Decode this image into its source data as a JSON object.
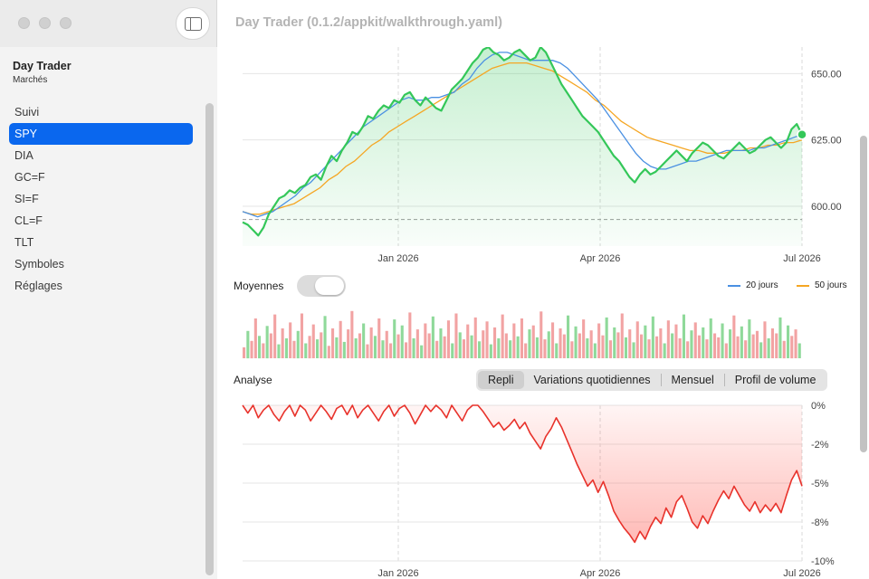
{
  "window": {
    "title": "Day Trader (0.1.2/appkit/walkthrough.yaml)"
  },
  "sidebar": {
    "app_title": "Day Trader",
    "app_subtitle": "Marchés",
    "items": [
      {
        "label": "Suivi",
        "active": false
      },
      {
        "label": "SPY",
        "active": true
      },
      {
        "label": "DIA",
        "active": false
      },
      {
        "label": "GC=F",
        "active": false
      },
      {
        "label": "SI=F",
        "active": false
      },
      {
        "label": "CL=F",
        "active": false
      },
      {
        "label": "TLT",
        "active": false
      },
      {
        "label": "Symboles",
        "active": false
      },
      {
        "label": "Réglages",
        "active": false
      }
    ]
  },
  "controls": {
    "moyennes_label": "Moyennes",
    "moyennes_on": false,
    "legend": [
      {
        "label": "20 jours",
        "color": "#4a90e2"
      },
      {
        "label": "50 jours",
        "color": "#f5a623"
      }
    ],
    "analyse_label": "Analyse",
    "segments": [
      {
        "label": "Repli",
        "selected": true
      },
      {
        "label": "Variations quotidiennes",
        "selected": false
      },
      {
        "label": "Mensuel",
        "selected": false
      },
      {
        "label": "Profil de volume",
        "selected": false
      }
    ]
  },
  "colors": {
    "accent": "#0a67ee",
    "price": "#34c759",
    "ma20": "#4a90e2",
    "ma50": "#f5a623",
    "drawdown": "#e8322b",
    "volume_up": "#8fd99a",
    "volume_down": "#f2a3a3"
  },
  "chart_data": [
    {
      "type": "line",
      "title": "",
      "x_ticks": [
        "Jan 2026",
        "Apr 2026",
        "Jul 2026"
      ],
      "y_ticks": [
        "600.00",
        "625.00",
        "650.00"
      ],
      "ylim": [
        585,
        660
      ],
      "reference_line": 595,
      "series": [
        {
          "name": "",
          "color": "#34c759",
          "values": [
            594,
            593,
            591,
            589,
            592,
            597,
            600,
            603,
            604,
            606,
            605,
            607,
            608,
            611,
            612,
            610,
            615,
            619,
            617,
            621,
            624,
            628,
            627,
            630,
            634,
            633,
            636,
            638,
            637,
            640,
            639,
            642,
            643,
            640,
            638,
            641,
            639,
            637,
            636,
            640,
            644,
            646,
            648,
            651,
            654,
            656,
            659,
            660,
            658,
            657,
            655,
            656,
            658,
            659,
            657,
            655,
            656,
            660,
            658,
            654,
            650,
            646,
            643,
            640,
            637,
            634,
            632,
            630,
            628,
            625,
            622,
            619,
            617,
            614,
            611,
            609,
            612,
            614,
            612,
            613,
            615,
            617,
            619,
            621,
            619,
            617,
            620,
            622,
            624,
            623,
            621,
            619,
            618,
            620,
            622,
            624,
            622,
            620,
            621,
            623,
            625,
            626,
            624,
            622,
            624,
            629,
            631,
            627
          ]
        },
        {
          "name": "20 jours",
          "color": "#4a90e2",
          "values": [
            598,
            597,
            596,
            597,
            598,
            600,
            602,
            604,
            607,
            609,
            612,
            615,
            618,
            621,
            624,
            627,
            630,
            632,
            634,
            636,
            638,
            640,
            641,
            640,
            640,
            641,
            641,
            642,
            643,
            646,
            648,
            652,
            655,
            657,
            658,
            658,
            657,
            656,
            655,
            655,
            655,
            655,
            654,
            652,
            649,
            646,
            643,
            640,
            636,
            632,
            628,
            624,
            620,
            617,
            615,
            614,
            614,
            615,
            616,
            617,
            617,
            618,
            619,
            620,
            621,
            621,
            621,
            621,
            622,
            622,
            623,
            624,
            625,
            626,
            627
          ]
        },
        {
          "name": "50 jours",
          "color": "#f5a623",
          "values": [
            598,
            597,
            597,
            598,
            599,
            600,
            601,
            603,
            605,
            607,
            610,
            612,
            615,
            617,
            620,
            623,
            625,
            628,
            630,
            632,
            634,
            636,
            638,
            640,
            642,
            644,
            646,
            648,
            650,
            652,
            653,
            654,
            654,
            654,
            653,
            652,
            651,
            649,
            647,
            645,
            643,
            640,
            638,
            635,
            632,
            630,
            628,
            626,
            625,
            624,
            623,
            622,
            621,
            621,
            620,
            620,
            620,
            621,
            621,
            622,
            622,
            623,
            623,
            624,
            624,
            625
          ]
        }
      ]
    },
    {
      "type": "bar",
      "title": "",
      "values": [
        0.22,
        0.55,
        0.35,
        0.8,
        0.45,
        0.3,
        0.65,
        0.5,
        0.88,
        0.28,
        0.6,
        0.4,
        0.72,
        0.35,
        0.55,
        0.9,
        0.3,
        0.45,
        0.68,
        0.38,
        0.52,
        0.85,
        0.25,
        0.6,
        0.42,
        0.75,
        0.33,
        0.58,
        0.95,
        0.4,
        0.5,
        0.7,
        0.28,
        0.62,
        0.45,
        0.8,
        0.36,
        0.55,
        0.3,
        0.78,
        0.48,
        0.66,
        0.32,
        0.92,
        0.4,
        0.58,
        0.26,
        0.7,
        0.5,
        0.84,
        0.35,
        0.6,
        0.44,
        0.76,
        0.3,
        0.9,
        0.52,
        0.38,
        0.68,
        0.46,
        0.82,
        0.34,
        0.56,
        0.74,
        0.28,
        0.62,
        0.4,
        0.88,
        0.5,
        0.36,
        0.7,
        0.44,
        0.8,
        0.3,
        0.58,
        0.66,
        0.42,
        0.94,
        0.38,
        0.54,
        0.72,
        0.3,
        0.6,
        0.48,
        0.86,
        0.34,
        0.64,
        0.5,
        0.78,
        0.4,
        0.56,
        0.3,
        0.7,
        0.46,
        0.82,
        0.36,
        0.62,
        0.52,
        0.9,
        0.42,
        0.58,
        0.32,
        0.74,
        0.48,
        0.66,
        0.38,
        0.84,
        0.44,
        0.6,
        0.3,
        0.76,
        0.5,
        0.68,
        0.4,
        0.88,
        0.34,
        0.56,
        0.72,
        0.46,
        0.62,
        0.38,
        0.8,
        0.5,
        0.42,
        0.7,
        0.3,
        0.58,
        0.86,
        0.44,
        0.64,
        0.36,
        0.78,
        0.48,
        0.55,
        0.32,
        0.74,
        0.4,
        0.6,
        0.5,
        0.82,
        0.35,
        0.66,
        0.45,
        0.58,
        0.3
      ],
      "directions": "updownmixed"
    },
    {
      "type": "area",
      "title": "",
      "y_ticks": [
        "0%",
        "-2%",
        "-5%",
        "-8%",
        "-10%"
      ],
      "ylim": [
        -10,
        0
      ],
      "values": [
        0,
        -0.5,
        0,
        -0.8,
        -0.3,
        0,
        -0.6,
        -1,
        -0.4,
        0,
        -0.7,
        0,
        -0.3,
        -1,
        -0.5,
        0,
        -0.4,
        -0.9,
        -0.2,
        0,
        -0.6,
        0,
        -0.8,
        -0.3,
        0,
        -0.5,
        -1,
        -0.4,
        0,
        -0.7,
        -0.2,
        0,
        -0.5,
        -1.2,
        -0.6,
        0,
        -0.4,
        0,
        -0.3,
        -0.8,
        0,
        -0.5,
        -1,
        -0.3,
        0,
        0,
        -0.4,
        -0.9,
        -1.4,
        -1.1,
        -1.6,
        -1.3,
        -0.9,
        -1.5,
        -1.1,
        -1.8,
        -2.3,
        -2.8,
        -2,
        -1.5,
        -0.8,
        -1.4,
        -2.2,
        -3,
        -3.8,
        -4.5,
        -5.2,
        -4.8,
        -5.6,
        -4.9,
        -5.8,
        -6.8,
        -7.4,
        -7.9,
        -8.3,
        -8.8,
        -8.1,
        -8.6,
        -7.8,
        -7.2,
        -7.6,
        -6.6,
        -7.2,
        -6.2,
        -5.8,
        -6.6,
        -7.5,
        -7.9,
        -7.1,
        -7.6,
        -6.8,
        -6.1,
        -5.5,
        -6,
        -5.2,
        -5.8,
        -6.4,
        -6.8,
        -6.2,
        -6.9,
        -6.4,
        -6.8,
        -6.3,
        -6.9,
        -5.8,
        -4.8,
        -4.2,
        -5.2
      ]
    }
  ]
}
